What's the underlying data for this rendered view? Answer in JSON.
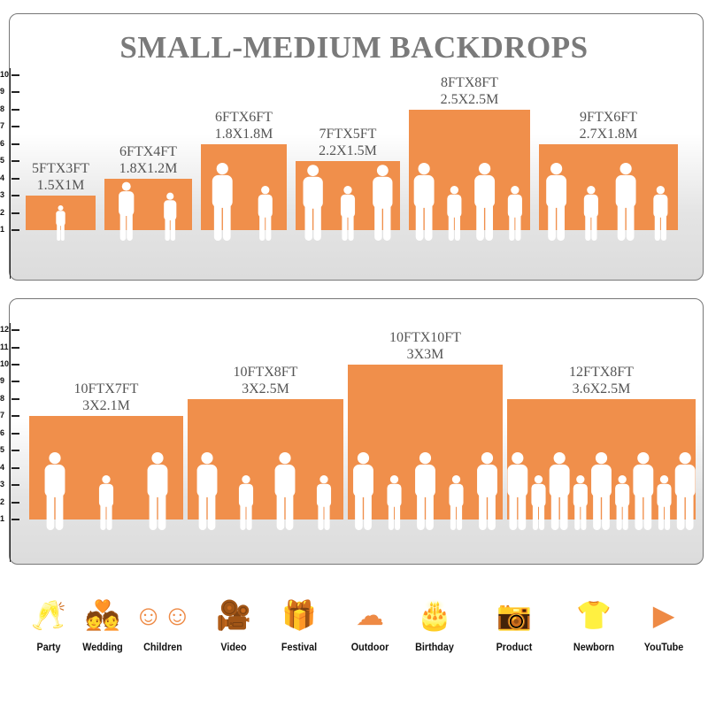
{
  "title": "SMALL-MEDIUM BACKDROPS",
  "colors": {
    "backdrop": "#f08f4b",
    "title": "#7a7a7a",
    "icon": "#ee8a45"
  },
  "panel_top": {
    "ruler_ticks": [
      "1",
      "2",
      "3",
      "4",
      "5",
      "6",
      "7",
      "8",
      "9",
      "10"
    ],
    "backdrops": [
      {
        "ft": "5FTX3FT",
        "m": "1.5X1M",
        "height_ft": 3,
        "figures": 1
      },
      {
        "ft": "6FTX4FT",
        "m": "1.8X1.2M",
        "height_ft": 4,
        "figures": 2
      },
      {
        "ft": "6FTX6FT",
        "m": "1.8X1.8M",
        "height_ft": 6,
        "figures": 2
      },
      {
        "ft": "7FTX5FT",
        "m": "2.2X1.5M",
        "height_ft": 5,
        "figures": 3
      },
      {
        "ft": "8FTX8FT",
        "m": "2.5X2.5M",
        "height_ft": 8,
        "figures": 4
      },
      {
        "ft": "9FTX6FT",
        "m": "2.7X1.8M",
        "height_ft": 6,
        "figures": 4
      }
    ]
  },
  "panel_bottom": {
    "ruler_ticks": [
      "1",
      "2",
      "3",
      "4",
      "5",
      "6",
      "7",
      "8",
      "9",
      "10",
      "11",
      "12"
    ],
    "backdrops": [
      {
        "ft": "10FTX7FT",
        "m": "3X2.1M",
        "height_ft": 7,
        "figures": 3
      },
      {
        "ft": "10FTX8FT",
        "m": "3X2.5M",
        "height_ft": 8,
        "figures": 4
      },
      {
        "ft": "10FTX10FT",
        "m": "3X3M",
        "height_ft": 10,
        "figures": 5
      },
      {
        "ft": "12FTX8FT",
        "m": "3.6X2.5M",
        "height_ft": 8,
        "figures": 9
      }
    ]
  },
  "uses": [
    {
      "label": "Party",
      "icon": "cheers-glasses-icon",
      "glyph": "🥂"
    },
    {
      "label": "Wedding",
      "icon": "wedding-couple-icon",
      "glyph": "💑"
    },
    {
      "label": "Children",
      "icon": "children-faces-icon",
      "glyph": "☺☺"
    },
    {
      "label": "Video",
      "icon": "video-camera-icon",
      "glyph": "🎥"
    },
    {
      "label": "Festival",
      "icon": "gift-box-icon",
      "glyph": "🎁"
    },
    {
      "label": "Outdoor",
      "icon": "cloud-icon",
      "glyph": "☁"
    },
    {
      "label": "Birthday",
      "icon": "birthday-cake-icon",
      "glyph": "🎂"
    },
    {
      "label": "Product",
      "icon": "camera-icon",
      "glyph": "📷"
    },
    {
      "label": "Newborn",
      "icon": "baby-onesie-icon",
      "glyph": "👕"
    },
    {
      "label": "YouTube",
      "icon": "play-button-icon",
      "glyph": "▶"
    }
  ]
}
